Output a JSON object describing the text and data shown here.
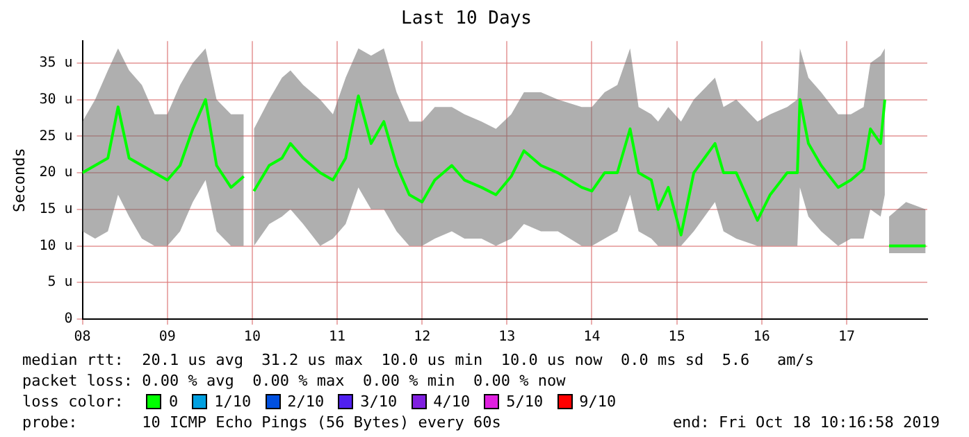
{
  "chart_data": {
    "type": "line",
    "title": "Last 10 Days",
    "ylabel": "Seconds",
    "x": [
      8.0,
      8.15,
      8.3,
      8.42,
      8.55,
      8.7,
      8.85,
      9.0,
      9.15,
      9.3,
      9.45,
      9.58,
      9.75,
      9.9,
      9.95,
      10.02,
      10.2,
      10.35,
      10.45,
      10.6,
      10.8,
      10.95,
      11.1,
      11.25,
      11.4,
      11.55,
      11.7,
      11.85,
      12.0,
      12.15,
      12.35,
      12.5,
      12.7,
      12.87,
      13.05,
      13.2,
      13.4,
      13.6,
      13.88,
      14.0,
      14.15,
      14.3,
      14.45,
      14.55,
      14.7,
      14.78,
      14.9,
      15.05,
      15.2,
      15.45,
      15.55,
      15.7,
      15.95,
      16.1,
      16.3,
      16.42,
      16.45,
      16.55,
      16.7,
      16.9,
      17.05,
      17.2,
      17.28,
      17.4,
      17.45,
      17.48,
      17.5,
      17.7,
      17.93
    ],
    "series": [
      {
        "color": "#00ff00",
        "values": [
          20,
          21,
          22,
          29,
          22,
          21,
          20,
          19,
          21,
          26,
          30,
          21,
          18,
          19.5,
          null,
          17.5,
          21,
          22,
          24,
          22,
          20,
          19,
          22,
          30.5,
          24,
          27,
          21,
          17,
          16,
          19,
          21,
          19,
          18,
          17,
          19.5,
          23,
          21,
          20,
          18,
          17.5,
          20,
          20,
          26,
          20,
          19,
          15,
          18,
          11.5,
          20,
          24,
          20,
          20,
          13.5,
          17,
          20,
          20,
          30,
          24,
          21,
          18,
          19,
          20.5,
          26,
          24,
          30,
          null,
          10,
          10,
          10
        ],
        "lower": [
          12,
          11,
          12,
          17,
          14,
          11,
          10,
          10,
          12,
          16,
          19,
          12,
          10,
          10,
          null,
          10,
          13,
          14,
          15,
          13,
          10,
          11,
          13,
          18,
          15,
          15,
          12,
          10,
          10,
          11,
          12,
          11,
          11,
          10,
          11,
          13,
          12,
          12,
          10,
          10,
          11,
          12,
          17,
          12,
          11,
          10,
          10,
          10,
          12,
          16,
          12,
          11,
          10,
          10,
          10,
          10,
          18,
          14,
          12,
          10,
          11,
          11,
          15,
          14,
          17,
          null,
          9,
          9,
          9
        ],
        "upper": [
          27,
          30,
          34,
          37,
          34,
          32,
          28,
          28,
          32,
          35,
          37,
          30,
          28,
          28,
          null,
          26,
          30,
          33,
          34,
          32,
          30,
          28,
          33,
          37,
          36,
          37,
          31,
          27,
          27,
          29,
          29,
          28,
          27,
          26,
          28,
          31,
          31,
          30,
          29,
          29,
          31,
          32,
          37,
          29,
          28,
          27,
          29,
          27,
          30,
          33,
          29,
          30,
          27,
          28,
          29,
          30,
          37,
          33,
          31,
          28,
          28,
          29,
          35,
          36,
          37,
          null,
          14,
          16,
          15
        ]
      }
    ],
    "xlim": [
      8,
      17.95
    ],
    "xticks": [
      {
        "value": 8,
        "label": "08"
      },
      {
        "value": 9,
        "label": "09"
      },
      10,
      11,
      12,
      13,
      14,
      15,
      16,
      17
    ],
    "ylim": [
      0,
      38
    ],
    "yticks": [
      0,
      {
        "value": 5,
        "label": "5 u"
      },
      {
        "value": 10,
        "label": "10 u"
      },
      {
        "value": 15,
        "label": "15 u"
      },
      {
        "value": 20,
        "label": "20 u"
      },
      {
        "value": 25,
        "label": "25 u"
      },
      {
        "value": 30,
        "label": "30 u"
      },
      {
        "value": 35,
        "label": "35 u"
      }
    ],
    "grid": true,
    "marker": "none",
    "line_style": "solid",
    "annotations": [
      "median rtt:  20.1 us avg  31.2 us max  10.0 us min  10.0 us now  0.0 ms sd  5.6   am/s",
      "packet loss: 0.00 % avg  0.00 % max  0.00 % min  0.00 % now",
      "loss color:",
      "0",
      "1/10",
      "2/10",
      "3/10",
      "4/10",
      "5/10",
      "9/10",
      "probe:       10 ICMP Echo Pings (56 Bytes) every 60s",
      "end: Fri Oct 18 10:16:58 2019"
    ]
  }
}
